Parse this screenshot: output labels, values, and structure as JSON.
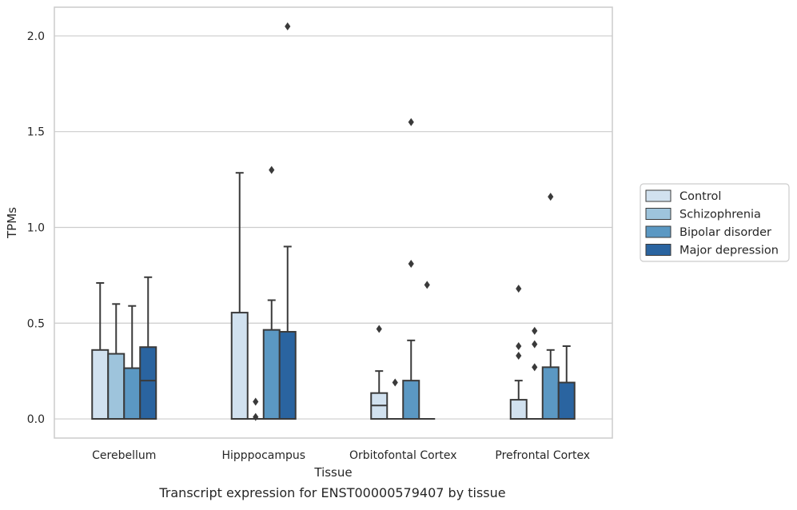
{
  "chart_data": {
    "type": "box",
    "title": "",
    "caption": "Transcript expression for ENST00000579407 by tissue",
    "xlabel": "Tissue",
    "ylabel": "TPMs",
    "ylim": [
      -0.1,
      2.15
    ],
    "yticks": [
      0.0,
      0.5,
      1.0,
      1.5,
      2.0
    ],
    "ytick_labels": [
      "0.0",
      "0.5",
      "1.0",
      "1.5",
      "2.0"
    ],
    "grid": "horizontal",
    "legend_position": "right",
    "categories": [
      "Cerebellum",
      "Hipppocampus",
      "Orbitofontal Cortex",
      "Prefrontal Cortex"
    ],
    "series": [
      {
        "name": "Control",
        "color": "#d1e1ef",
        "boxes": [
          {
            "q1": 0.0,
            "median": 0.0,
            "q3": 0.36,
            "whisker_low": 0.0,
            "whisker_high": 0.71,
            "outliers": []
          },
          {
            "q1": 0.0,
            "median": 0.0,
            "q3": 0.555,
            "whisker_low": 0.0,
            "whisker_high": 1.285,
            "outliers": []
          },
          {
            "q1": 0.0,
            "median": 0.07,
            "q3": 0.135,
            "whisker_low": 0.0,
            "whisker_high": 0.25,
            "outliers": [
              0.47
            ]
          },
          {
            "q1": 0.0,
            "median": 0.0,
            "q3": 0.1,
            "whisker_low": 0.0,
            "whisker_high": 0.2,
            "outliers": [
              0.33,
              0.38,
              0.68
            ]
          }
        ]
      },
      {
        "name": "Schizophrenia",
        "color": "#9ec4dc",
        "boxes": [
          {
            "q1": 0.0,
            "median": 0.0,
            "q3": 0.34,
            "whisker_low": 0.0,
            "whisker_high": 0.6,
            "outliers": []
          },
          {
            "q1": 0.0,
            "median": 0.0,
            "q3": 0.0,
            "whisker_low": 0.0,
            "whisker_high": 0.0,
            "outliers": [
              0.01,
              0.09
            ]
          },
          {
            "q1": 0.0,
            "median": 0.0,
            "q3": 0.0,
            "whisker_low": 0.0,
            "whisker_high": 0.0,
            "outliers": [
              0.19
            ]
          },
          {
            "q1": 0.0,
            "median": 0.0,
            "q3": 0.0,
            "whisker_low": 0.0,
            "whisker_high": 0.0,
            "outliers": [
              0.27,
              0.39,
              0.46
            ]
          }
        ]
      },
      {
        "name": "Bipolar disorder",
        "color": "#5b98c3",
        "boxes": [
          {
            "q1": 0.0,
            "median": 0.0,
            "q3": 0.265,
            "whisker_low": 0.0,
            "whisker_high": 0.59,
            "outliers": []
          },
          {
            "q1": 0.0,
            "median": 0.0,
            "q3": 0.465,
            "whisker_low": 0.0,
            "whisker_high": 0.62,
            "outliers": [
              1.3
            ]
          },
          {
            "q1": 0.0,
            "median": 0.0,
            "q3": 0.2,
            "whisker_low": 0.0,
            "whisker_high": 0.41,
            "outliers": [
              0.81,
              1.55
            ]
          },
          {
            "q1": 0.0,
            "median": 0.0,
            "q3": 0.27,
            "whisker_low": 0.0,
            "whisker_high": 0.36,
            "outliers": [
              1.16
            ]
          }
        ]
      },
      {
        "name": "Major depression",
        "color": "#2a64a0",
        "boxes": [
          {
            "q1": 0.0,
            "median": 0.2,
            "q3": 0.375,
            "whisker_low": 0.0,
            "whisker_high": 0.74,
            "outliers": []
          },
          {
            "q1": 0.0,
            "median": 0.0,
            "q3": 0.455,
            "whisker_low": 0.0,
            "whisker_high": 0.9,
            "outliers": [
              2.05
            ]
          },
          {
            "q1": 0.0,
            "median": 0.0,
            "q3": 0.0,
            "whisker_low": 0.0,
            "whisker_high": 0.0,
            "outliers": [
              0.7
            ]
          },
          {
            "q1": 0.0,
            "median": 0.0,
            "q3": 0.19,
            "whisker_low": 0.0,
            "whisker_high": 0.38,
            "outliers": []
          }
        ]
      }
    ]
  }
}
